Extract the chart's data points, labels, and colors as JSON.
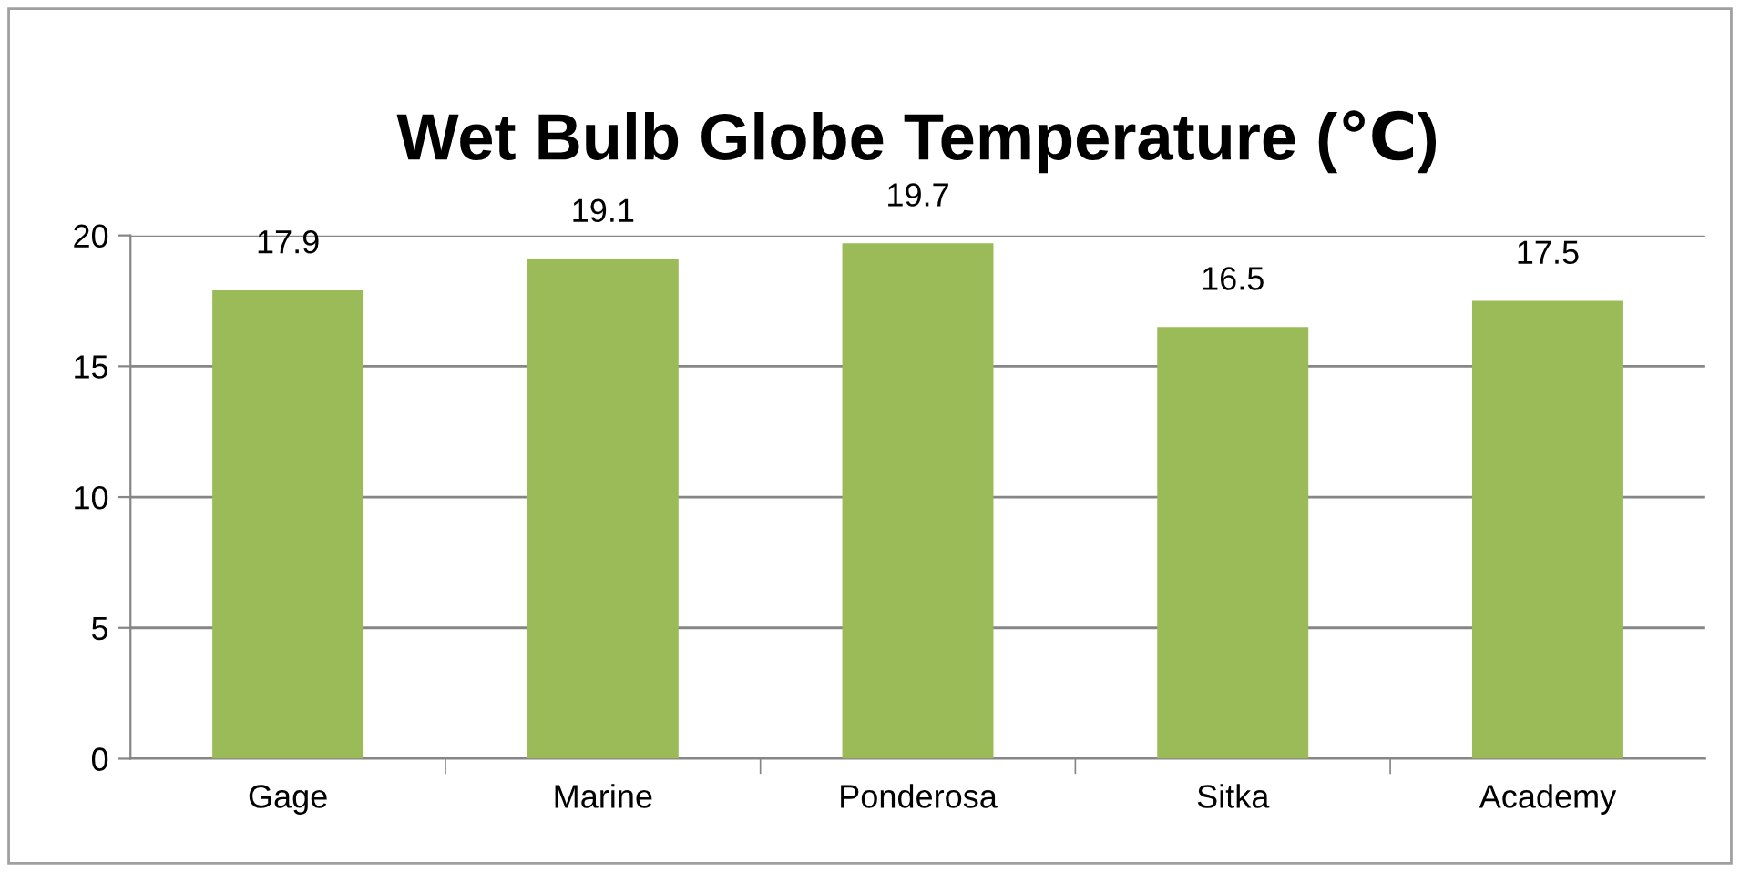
{
  "chart_data": {
    "type": "bar",
    "title": "Wet Bulb Globe Temperature (℃)",
    "categories": [
      "Gage",
      "Marine",
      "Ponderosa",
      "Sitka",
      "Academy"
    ],
    "values": [
      17.9,
      19.1,
      19.7,
      16.5,
      17.5
    ],
    "color": "#9bbb59",
    "ylim": [
      0,
      20
    ],
    "yticks": [
      0,
      5,
      10,
      15,
      20
    ],
    "grid": "y",
    "data_labels": true
  }
}
